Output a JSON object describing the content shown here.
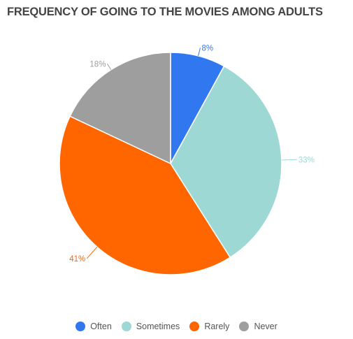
{
  "chart_data": {
    "type": "pie",
    "title": "FREQUENCY OF GOING TO THE MOVIES AMONG ADULTS",
    "categories": [
      "Often",
      "Sometimes",
      "Rarely",
      "Never"
    ],
    "values": [
      8,
      33,
      41,
      18
    ],
    "labels": [
      "8%",
      "33%",
      "41%",
      "18%"
    ],
    "colors": [
      "#3178f0",
      "#9ed8d4",
      "#ff6600",
      "#9e9e9e"
    ],
    "legend_position": "bottom"
  }
}
